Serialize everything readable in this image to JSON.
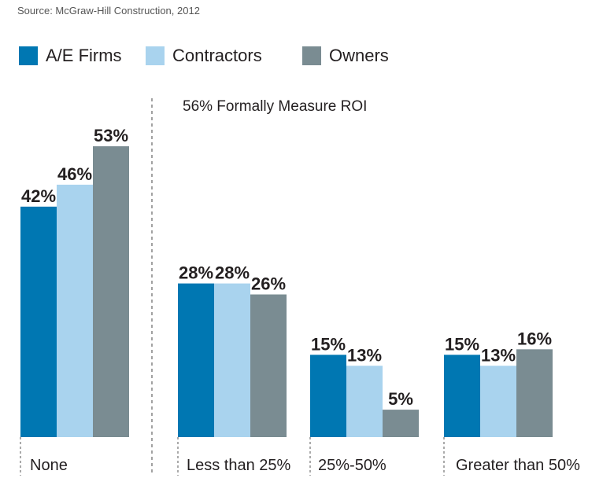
{
  "source": "Source: McGraw-Hill Construction, 2012",
  "colors": {
    "ae_firms": "#0077b2",
    "contractors": "#a9d3ee",
    "owners": "#7a8c92",
    "divider": "#444444"
  },
  "chart_data": {
    "type": "bar",
    "title": "",
    "xlabel": "",
    "ylabel": "",
    "ylim": [
      0,
      60
    ],
    "grid": false,
    "legend_position": "top-left",
    "categories": [
      "None",
      "Less than 25%",
      "25%-50%",
      "Greater than 50%"
    ],
    "series": [
      {
        "name": "A/E Firms",
        "values": [
          42,
          28,
          15,
          15
        ],
        "labels": [
          "42%",
          "28%",
          "15%",
          "15%"
        ]
      },
      {
        "name": "Contractors",
        "values": [
          46,
          28,
          13,
          13
        ],
        "labels": [
          "46%",
          "28%",
          "13%",
          "13%"
        ]
      },
      {
        "name": "Owners",
        "values": [
          53,
          26,
          5,
          16
        ],
        "labels": [
          "53%",
          "26%",
          "5%",
          "16%"
        ]
      }
    ],
    "annotations": [
      {
        "text": "56% Formally Measure ROI",
        "applies_to": [
          "Less than 25%",
          "25%-50%",
          "Greater than 50%"
        ]
      }
    ]
  }
}
